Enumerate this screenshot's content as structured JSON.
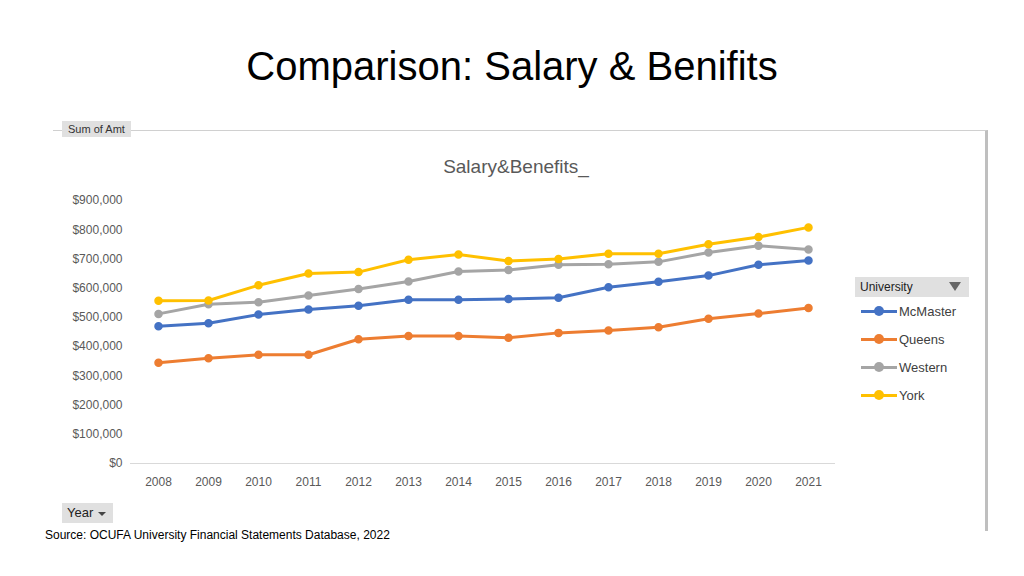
{
  "chart_data": {
    "type": "line",
    "slide_title": "Comparison: Salary & Benifits",
    "title": "Salary&Benefits_",
    "y_label": "Sum of Amt",
    "x_label": "Year",
    "legend_title": "University",
    "source": "Source: OCUFA University Financial Statements Database, 2022",
    "categories": [
      "2008",
      "2009",
      "2010",
      "2011",
      "2012",
      "2013",
      "2014",
      "2015",
      "2016",
      "2017",
      "2018",
      "2019",
      "2020",
      "2021"
    ],
    "series": [
      {
        "name": "McMaster",
        "color": "#4472c4",
        "values": [
          470000,
          480000,
          510000,
          527000,
          540000,
          560000,
          560000,
          563000,
          567000,
          603000,
          622000,
          643000,
          680000,
          695000
        ]
      },
      {
        "name": "Queens",
        "color": "#ed7d31",
        "values": [
          345000,
          360000,
          372000,
          372000,
          425000,
          436000,
          436000,
          430000,
          447000,
          455000,
          466000,
          495000,
          513000,
          532000
        ]
      },
      {
        "name": "Western",
        "color": "#a5a5a5",
        "values": [
          512000,
          545000,
          552000,
          575000,
          597000,
          623000,
          657000,
          662000,
          680000,
          682000,
          690000,
          722000,
          745000,
          732000
        ]
      },
      {
        "name": "York",
        "color": "#ffc000",
        "values": [
          557000,
          558000,
          610000,
          650000,
          655000,
          697000,
          715000,
          693000,
          700000,
          718000,
          718000,
          750000,
          775000,
          808000
        ]
      }
    ],
    "ylim": [
      0,
      900000
    ],
    "yticks": [
      {
        "value": 0,
        "label": "$0"
      },
      {
        "value": 100000,
        "label": "$100,000"
      },
      {
        "value": 200000,
        "label": "$200,000"
      },
      {
        "value": 300000,
        "label": "$300,000"
      },
      {
        "value": 400000,
        "label": "$400,000"
      },
      {
        "value": 500000,
        "label": "$500,000"
      },
      {
        "value": 600000,
        "label": "$600,000"
      },
      {
        "value": 700000,
        "label": "$700,000"
      },
      {
        "value": 800000,
        "label": "$800,000"
      },
      {
        "value": 900000,
        "label": "$900,000"
      }
    ],
    "grid": false,
    "legend": "right",
    "marker": "circle"
  }
}
